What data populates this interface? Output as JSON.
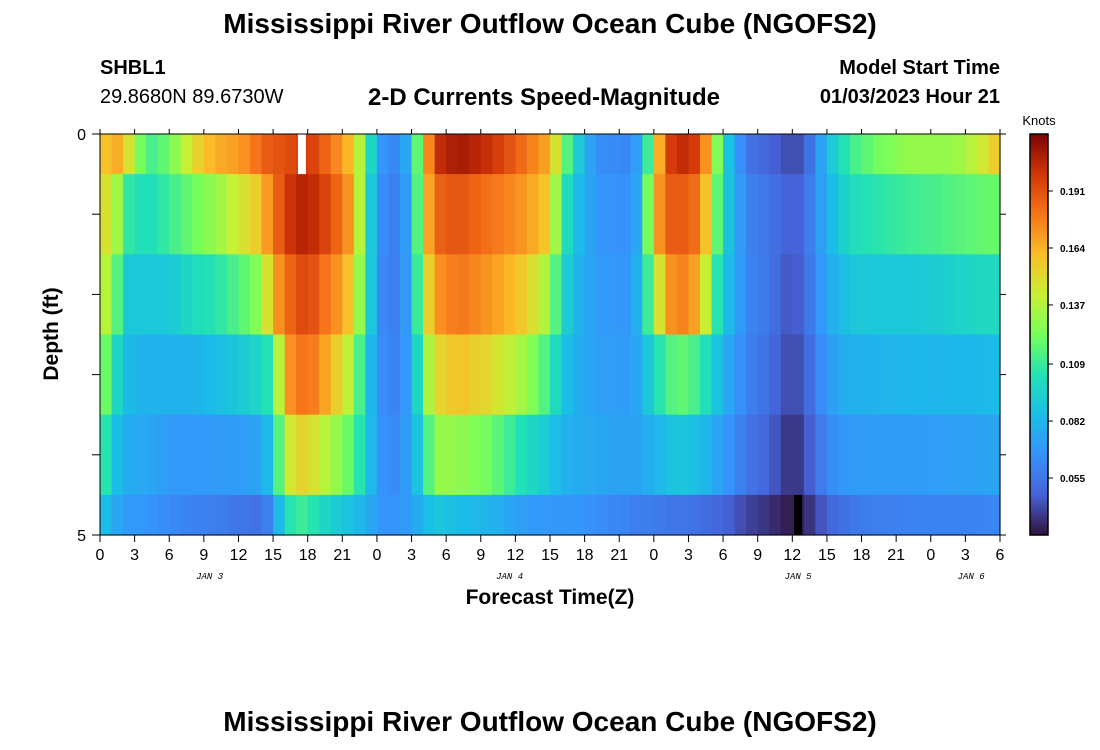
{
  "header": {
    "title": "Mississippi River Outflow Ocean Cube (NGOFS2)",
    "station": "SHBL1",
    "coordinates": "29.8680N  89.6730W",
    "subtitle": "2-D Currents Speed-Magnitude",
    "model_start_label": "Model Start Time",
    "model_start_value": "01/03/2023 Hour 21"
  },
  "footer": {
    "title": "Mississippi River Outflow Ocean Cube (NGOFS2)"
  },
  "chart_data": {
    "type": "heatmap",
    "title": "2-D Currents Speed-Magnitude",
    "xlabel": "Forecast Time(Z)",
    "ylabel": "Depth (ft)",
    "x_start_hour": 0,
    "x_end_hour": 78,
    "x_tick_labels": [
      "0",
      "3",
      "6",
      "9",
      "12",
      "15",
      "18",
      "21",
      "0",
      "3",
      "6",
      "9",
      "12",
      "15",
      "18",
      "21",
      "0",
      "3",
      "6",
      "9",
      "12",
      "15",
      "18",
      "21",
      "0",
      "3",
      "6"
    ],
    "date_labels": [
      {
        "label": "JAN 3",
        "hour": 9.5
      },
      {
        "label": "JAN 4",
        "hour": 35.5
      },
      {
        "label": "JAN 5",
        "hour": 60.5
      },
      {
        "label": "JAN 6",
        "hour": 75.5
      }
    ],
    "y_tick_labels": [
      "0",
      "5"
    ],
    "ylim": [
      0,
      5
    ],
    "colorbar": {
      "unit": "Knots",
      "min": 0.028,
      "max": 0.218,
      "tick_labels": [
        "0.191",
        "0.164",
        "0.137",
        "0.109",
        "0.082",
        "0.055"
      ],
      "tick_values": [
        0.191,
        0.164,
        0.137,
        0.109,
        0.082,
        0.055
      ]
    },
    "depth_bands": [
      0.5,
      1.5,
      2.5,
      3.5,
      4.5,
      5.0
    ],
    "keypoints": [
      {
        "t": 0,
        "v": [
          0.15,
          0.14,
          0.135,
          0.13,
          0.12,
          0.09
        ]
      },
      {
        "t": 1,
        "v": [
          0.17,
          0.155,
          0.14,
          0.11,
          0.09,
          0.08
        ]
      },
      {
        "t": 2,
        "v": [
          0.16,
          0.11,
          0.09,
          0.085,
          0.078,
          0.07
        ]
      },
      {
        "t": 4,
        "v": [
          0.11,
          0.1,
          0.09,
          0.08,
          0.075,
          0.068
        ]
      },
      {
        "t": 6,
        "v": [
          0.12,
          0.11,
          0.09,
          0.08,
          0.07,
          0.063
        ]
      },
      {
        "t": 8,
        "v": [
          0.15,
          0.12,
          0.1,
          0.08,
          0.068,
          0.06
        ]
      },
      {
        "t": 10,
        "v": [
          0.165,
          0.13,
          0.105,
          0.085,
          0.07,
          0.058
        ]
      },
      {
        "t": 12,
        "v": [
          0.17,
          0.145,
          0.115,
          0.09,
          0.07,
          0.055
        ]
      },
      {
        "t": 13,
        "v": [
          0.175,
          0.15,
          0.12,
          0.095,
          0.072,
          0.055
        ]
      },
      {
        "t": 14,
        "v": [
          0.185,
          0.16,
          0.13,
          0.098,
          0.075,
          0.052
        ]
      },
      {
        "t": 15,
        "v": [
          0.19,
          0.18,
          0.165,
          0.11,
          0.09,
          0.065
        ]
      },
      {
        "t": 16,
        "v": [
          0.19,
          0.195,
          0.18,
          0.165,
          0.14,
          0.1
        ]
      },
      {
        "t": 17,
        "v": [
          0.195,
          0.205,
          0.19,
          0.18,
          0.15,
          0.11
        ]
      },
      {
        "t": 18,
        "v": [
          0.2,
          0.205,
          0.195,
          0.18,
          0.155,
          0.11
        ]
      },
      {
        "t": 19,
        "v": [
          0.19,
          0.2,
          0.185,
          0.175,
          0.14,
          0.1
        ]
      },
      {
        "t": 20,
        "v": [
          0.18,
          0.19,
          0.175,
          0.16,
          0.135,
          0.095
        ]
      },
      {
        "t": 21,
        "v": [
          0.17,
          0.18,
          0.17,
          0.15,
          0.125,
          0.09
        ]
      },
      {
        "t": 22,
        "v": [
          0.155,
          0.165,
          0.15,
          0.13,
          0.115,
          0.085
        ]
      },
      {
        "t": 23,
        "v": [
          0.12,
          0.11,
          0.11,
          0.095,
          0.095,
          0.08
        ]
      },
      {
        "t": 24,
        "v": [
          0.075,
          0.07,
          0.068,
          0.068,
          0.07,
          0.07
        ]
      },
      {
        "t": 25,
        "v": [
          0.06,
          0.058,
          0.058,
          0.06,
          0.062,
          0.065
        ]
      },
      {
        "t": 26,
        "v": [
          0.065,
          0.06,
          0.06,
          0.062,
          0.065,
          0.068
        ]
      },
      {
        "t": 27,
        "v": [
          0.085,
          0.08,
          0.078,
          0.075,
          0.075,
          0.072
        ]
      },
      {
        "t": 28,
        "v": [
          0.15,
          0.15,
          0.14,
          0.12,
          0.1,
          0.082
        ]
      },
      {
        "t": 29,
        "v": [
          0.2,
          0.185,
          0.17,
          0.15,
          0.13,
          0.09
        ]
      },
      {
        "t": 31,
        "v": [
          0.21,
          0.19,
          0.18,
          0.16,
          0.13,
          0.085
        ]
      },
      {
        "t": 34,
        "v": [
          0.2,
          0.18,
          0.17,
          0.15,
          0.12,
          0.08
        ]
      },
      {
        "t": 37,
        "v": [
          0.18,
          0.17,
          0.155,
          0.13,
          0.1,
          0.07
        ]
      },
      {
        "t": 39,
        "v": [
          0.165,
          0.155,
          0.13,
          0.11,
          0.09,
          0.068
        ]
      },
      {
        "t": 40,
        "v": [
          0.13,
          0.11,
          0.1,
          0.09,
          0.08,
          0.068
        ]
      },
      {
        "t": 41,
        "v": [
          0.1,
          0.09,
          0.085,
          0.08,
          0.078,
          0.068
        ]
      },
      {
        "t": 43,
        "v": [
          0.065,
          0.068,
          0.07,
          0.072,
          0.075,
          0.065
        ]
      },
      {
        "t": 46,
        "v": [
          0.062,
          0.065,
          0.068,
          0.07,
          0.072,
          0.06
        ]
      },
      {
        "t": 47,
        "v": [
          0.08,
          0.085,
          0.09,
          0.08,
          0.075,
          0.058
        ]
      },
      {
        "t": 48,
        "v": [
          0.14,
          0.16,
          0.13,
          0.1,
          0.08,
          0.058
        ]
      },
      {
        "t": 49,
        "v": [
          0.19,
          0.185,
          0.165,
          0.11,
          0.085,
          0.055
        ]
      },
      {
        "t": 50,
        "v": [
          0.205,
          0.19,
          0.18,
          0.12,
          0.09,
          0.055
        ]
      },
      {
        "t": 52,
        "v": [
          0.195,
          0.18,
          0.165,
          0.11,
          0.085,
          0.053
        ]
      },
      {
        "t": 53,
        "v": [
          0.15,
          0.14,
          0.12,
          0.095,
          0.078,
          0.05
        ]
      },
      {
        "t": 54,
        "v": [
          0.1,
          0.095,
          0.09,
          0.08,
          0.07,
          0.048
        ]
      },
      {
        "t": 55,
        "v": [
          0.075,
          0.08,
          0.078,
          0.07,
          0.062,
          0.045
        ]
      },
      {
        "t": 56,
        "v": [
          0.055,
          0.06,
          0.062,
          0.06,
          0.055,
          0.04
        ]
      },
      {
        "t": 58,
        "v": [
          0.048,
          0.055,
          0.055,
          0.052,
          0.048,
          0.036
        ]
      },
      {
        "t": 59,
        "v": [
          0.045,
          0.05,
          0.048,
          0.045,
          0.04,
          0.032
        ]
      },
      {
        "t": 60,
        "v": [
          0.04,
          0.045,
          0.042,
          0.04,
          0.035,
          0.03
        ]
      },
      {
        "t": 61,
        "v": [
          0.045,
          0.05,
          0.05,
          0.045,
          0.04,
          0.032
        ]
      },
      {
        "t": 62,
        "v": [
          0.062,
          0.065,
          0.062,
          0.058,
          0.052,
          0.04
        ]
      },
      {
        "t": 63,
        "v": [
          0.085,
          0.08,
          0.075,
          0.07,
          0.062,
          0.048
        ]
      },
      {
        "t": 65,
        "v": [
          0.11,
          0.1,
          0.09,
          0.08,
          0.07,
          0.055
        ]
      },
      {
        "t": 67,
        "v": [
          0.12,
          0.105,
          0.09,
          0.08,
          0.07,
          0.058
        ]
      },
      {
        "t": 70,
        "v": [
          0.13,
          0.11,
          0.09,
          0.082,
          0.07,
          0.06
        ]
      },
      {
        "t": 74,
        "v": [
          0.13,
          0.115,
          0.095,
          0.082,
          0.072,
          0.06
        ]
      },
      {
        "t": 76,
        "v": [
          0.14,
          0.118,
          0.098,
          0.082,
          0.072,
          0.06
        ]
      },
      {
        "t": 78,
        "v": [
          0.16,
          0.12,
          0.1,
          0.085,
          0.075,
          0.062
        ]
      }
    ],
    "missing_cells": [
      {
        "hour": 17,
        "band": 0,
        "color": "#ffffff"
      },
      {
        "hour": 60,
        "band": 5,
        "color": "#000000"
      }
    ]
  }
}
